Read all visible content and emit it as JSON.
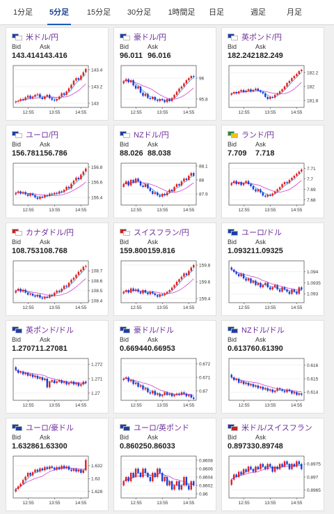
{
  "tabs": [
    {
      "label": "1分足",
      "active": false
    },
    {
      "label": "5分足",
      "active": true
    },
    {
      "label": "15分足",
      "active": false
    },
    {
      "label": "30分足",
      "active": false
    },
    {
      "label": "1時間足",
      "active": false
    },
    {
      "label": "日足",
      "active": false
    },
    {
      "label": "週足",
      "active": false
    },
    {
      "label": "月足",
      "active": false
    }
  ],
  "labels": {
    "bid": "Bid",
    "ask": "Ask"
  },
  "colors": {
    "up": "#e02020",
    "down": "#1c3fd6",
    "ma_fast": "#3aa0e0",
    "ma_slow": "#d040d0",
    "pair_text": "#6c2d9a",
    "tab_active": "#1a5bb8"
  },
  "cards": [
    {
      "pair": "米ドル/円",
      "bid": "143.414",
      "ask": "143.416",
      "flags": [
        "#1c3fa8",
        "#ffffff"
      ],
      "chart": {
        "xticks": [
          "12:55",
          "13:55",
          "14:55"
        ],
        "yticks": [
          "143.4",
          "143.2",
          "143"
        ],
        "ylim": [
          142.95,
          143.45
        ],
        "closes": [
          143.02,
          143.03,
          143.05,
          143.04,
          143.07,
          143.09,
          143.06,
          143.08,
          143.1,
          143.11,
          143.07,
          143.05,
          143.08,
          143.1,
          143.06,
          143.04,
          143.03,
          143.05,
          143.08,
          143.12,
          143.1,
          143.14,
          143.18,
          143.22,
          143.27,
          143.3,
          143.28,
          143.33,
          143.37,
          143.41
        ]
      }
    },
    {
      "pair": "豪ドル/円",
      "bid": "96.011",
      "ask": "96.016",
      "flags": [
        "#1c3fa8",
        "#ffffff"
      ],
      "chart": {
        "xticks": [
          "12:55",
          "13:55",
          "14:55"
        ],
        "yticks": [
          "96",
          "95.8"
        ],
        "ylim": [
          95.72,
          96.12
        ],
        "closes": [
          95.97,
          95.99,
          95.96,
          95.98,
          95.93,
          95.9,
          95.92,
          95.86,
          95.83,
          95.85,
          95.81,
          95.8,
          95.82,
          95.79,
          95.78,
          95.8,
          95.79,
          95.77,
          95.8,
          95.78,
          95.81,
          95.84,
          95.87,
          95.9,
          95.92,
          95.95,
          95.98,
          96.0,
          96.02,
          96.01
        ]
      }
    },
    {
      "pair": "英ポンド/円",
      "bid": "182.242",
      "ask": "182.249",
      "flags": [
        "#1c3fa8",
        "#ffffff"
      ],
      "chart": {
        "xticks": [
          "12:55",
          "13:55",
          "14:55"
        ],
        "yticks": [
          "182.2",
          "182",
          "181.8"
        ],
        "ylim": [
          181.7,
          182.3
        ],
        "closes": [
          181.9,
          181.92,
          181.9,
          181.93,
          181.95,
          181.92,
          181.94,
          181.96,
          181.93,
          181.95,
          181.97,
          181.94,
          181.92,
          181.9,
          181.85,
          181.82,
          181.85,
          181.84,
          181.88,
          181.9,
          181.93,
          181.96,
          182.0,
          182.05,
          182.08,
          182.12,
          182.15,
          182.18,
          182.22,
          182.24
        ]
      }
    },
    {
      "pair": "ユーロ/円",
      "bid": "156.781",
      "ask": "156.786",
      "flags": [
        "#1c3fa8",
        "#ffffff"
      ],
      "chart": {
        "xticks": [
          "12:55",
          "13:55",
          "14:55"
        ],
        "yticks": [
          "156.8",
          "156.6",
          "156.4"
        ],
        "ylim": [
          156.3,
          156.85
        ],
        "closes": [
          156.46,
          156.48,
          156.45,
          156.47,
          156.44,
          156.42,
          156.45,
          156.43,
          156.4,
          156.38,
          156.41,
          156.4,
          156.43,
          156.42,
          156.45,
          156.44,
          156.46,
          156.45,
          156.48,
          156.47,
          156.5,
          156.54,
          156.52,
          156.58,
          156.62,
          156.66,
          156.64,
          156.7,
          156.74,
          156.78
        ]
      }
    },
    {
      "pair": "NZドル/円",
      "bid": "88.026",
      "ask": "88.038",
      "flags": [
        "#1c3fa8",
        "#ffffff"
      ],
      "chart": {
        "xticks": [
          "12:55",
          "13:55",
          "14:55"
        ],
        "yticks": [
          "88.1",
          "88",
          "87.9"
        ],
        "ylim": [
          87.82,
          88.12
        ],
        "closes": [
          87.97,
          87.99,
          87.96,
          88.0,
          87.98,
          88.01,
          87.99,
          87.96,
          87.95,
          87.97,
          87.94,
          87.92,
          87.9,
          87.91,
          87.89,
          87.88,
          87.9,
          87.89,
          87.91,
          87.93,
          87.92,
          87.95,
          87.97,
          87.96,
          87.99,
          88.01,
          88.0,
          88.03,
          88.05,
          88.03
        ]
      }
    },
    {
      "pair": "ランド/円",
      "bid": "7.709",
      "ask": "7.718",
      "flags": [
        "#2a8a3a",
        "#f0c020"
      ],
      "chart": {
        "xticks": [
          "12:55",
          "13:55",
          "14:55"
        ],
        "yticks": [
          "7.71",
          "7.7",
          "7.69",
          "7.68"
        ],
        "ylim": [
          7.675,
          7.715
        ],
        "closes": [
          7.696,
          7.698,
          7.695,
          7.697,
          7.694,
          7.696,
          7.698,
          7.695,
          7.693,
          7.69,
          7.688,
          7.69,
          7.687,
          7.684,
          7.683,
          7.685,
          7.684,
          7.686,
          7.688,
          7.69,
          7.692,
          7.695,
          7.697,
          7.696,
          7.699,
          7.701,
          7.703,
          7.705,
          7.707,
          7.709
        ]
      }
    },
    {
      "pair": "カナダドル/円",
      "bid": "108.753",
      "ask": "108.768",
      "flags": [
        "#d02020",
        "#ffffff"
      ],
      "chart": {
        "xticks": [
          "12:55",
          "13:55",
          "14:55"
        ],
        "yticks": [
          "108.7",
          "108.6",
          "108.5",
          "108.4"
        ],
        "ylim": [
          108.38,
          108.8
        ],
        "closes": [
          108.5,
          108.52,
          108.49,
          108.51,
          108.48,
          108.46,
          108.47,
          108.45,
          108.44,
          108.46,
          108.43,
          108.42,
          108.44,
          108.43,
          108.46,
          108.45,
          108.48,
          108.5,
          108.49,
          108.52,
          108.55,
          108.54,
          108.58,
          108.61,
          108.63,
          108.66,
          108.69,
          108.71,
          108.74,
          108.75
        ]
      }
    },
    {
      "pair": "スイスフラン/円",
      "bid": "159.800",
      "ask": "159.816",
      "flags": [
        "#d02020",
        "#ffffff"
      ],
      "chart": {
        "xticks": [
          "12:55",
          "13:55",
          "14:55"
        ],
        "yticks": [
          "159.8",
          "159.6",
          "159.4"
        ],
        "ylim": [
          159.35,
          159.85
        ],
        "closes": [
          159.48,
          159.5,
          159.47,
          159.52,
          159.49,
          159.51,
          159.48,
          159.46,
          159.5,
          159.47,
          159.45,
          159.48,
          159.46,
          159.44,
          159.42,
          159.45,
          159.44,
          159.46,
          159.48,
          159.5,
          159.53,
          159.56,
          159.6,
          159.63,
          159.66,
          159.7,
          159.68,
          159.73,
          159.77,
          159.8
        ]
      }
    },
    {
      "pair": "ユーロ/ドル",
      "bid": "1.09321",
      "ask": "1.09325",
      "flags": [
        "#1c3fa8",
        "#1c3fa8"
      ],
      "chart": {
        "xticks": [
          "12:55",
          "13:55",
          "14:55"
        ],
        "yticks": [
          "1.094",
          "1.0935",
          "1.093"
        ],
        "ylim": [
          1.0926,
          1.0945
        ],
        "closes": [
          1.0941,
          1.094,
          1.0939,
          1.0938,
          1.0939,
          1.0937,
          1.0936,
          1.0937,
          1.0935,
          1.0936,
          1.0934,
          1.0935,
          1.0933,
          1.0934,
          1.0935,
          1.0933,
          1.0932,
          1.0933,
          1.0934,
          1.0932,
          1.0931,
          1.0933,
          1.0932,
          1.0931,
          1.093,
          1.0932,
          1.0931,
          1.093,
          1.0933,
          1.0932
        ]
      }
    },
    {
      "pair": "英ポンド/ドル",
      "bid": "1.27071",
      "ask": "1.27081",
      "flags": [
        "#1c3fa8",
        "#1c3fa8"
      ],
      "chart": {
        "xticks": [
          "12:55",
          "13:55",
          "14:55"
        ],
        "yticks": [
          "1.272",
          "1.271",
          "1.27"
        ],
        "ylim": [
          1.2695,
          1.2724
        ],
        "closes": [
          1.2716,
          1.2714,
          1.2715,
          1.2713,
          1.2714,
          1.2712,
          1.2713,
          1.2711,
          1.2712,
          1.271,
          1.2711,
          1.2709,
          1.271,
          1.2704,
          1.2708,
          1.2709,
          1.2707,
          1.2708,
          1.2709,
          1.2707,
          1.2708,
          1.2706,
          1.2707,
          1.2708,
          1.2706,
          1.2707,
          1.2705,
          1.2706,
          1.2708,
          1.2707
        ]
      }
    },
    {
      "pair": "豪ドル/ドル",
      "bid": "0.66944",
      "ask": "0.66953",
      "flags": [
        "#1c3fa8",
        "#1c3fa8"
      ],
      "chart": {
        "xticks": [
          "12:55",
          "13:55",
          "14:55"
        ],
        "yticks": [
          "0.672",
          "0.671",
          "0.67"
        ],
        "ylim": [
          0.6693,
          0.6724
        ],
        "closes": [
          0.6709,
          0.671,
          0.6707,
          0.6708,
          0.6705,
          0.6706,
          0.6703,
          0.6704,
          0.6701,
          0.6702,
          0.6699,
          0.6698,
          0.67,
          0.6697,
          0.6698,
          0.6696,
          0.6697,
          0.6699,
          0.6697,
          0.6698,
          0.6696,
          0.6697,
          0.6698,
          0.6697,
          0.6699,
          0.6698,
          0.6696,
          0.6697,
          0.6695,
          0.6694
        ]
      }
    },
    {
      "pair": "NZドル/ドル",
      "bid": "0.61376",
      "ask": "0.61390",
      "flags": [
        "#1c3fa8",
        "#1c3fa8"
      ],
      "chart": {
        "xticks": [
          "12:55",
          "13:55",
          "14:55"
        ],
        "yticks": [
          "0.616",
          "0.615",
          "0.614"
        ],
        "ylim": [
          0.6134,
          0.6165
        ],
        "closes": [
          0.6151,
          0.6149,
          0.615,
          0.6147,
          0.6148,
          0.6146,
          0.6147,
          0.6145,
          0.6146,
          0.6144,
          0.6145,
          0.6143,
          0.6144,
          0.6142,
          0.6143,
          0.6141,
          0.6142,
          0.614,
          0.6141,
          0.6143,
          0.6142,
          0.6141,
          0.614,
          0.6142,
          0.6141,
          0.6139,
          0.614,
          0.6138,
          0.6139,
          0.6138
        ]
      }
    },
    {
      "pair": "ユーロ/豪ドル",
      "bid": "1.63286",
      "ask": "1.63300",
      "flags": [
        "#1c3fa8",
        "#1c3fa8"
      ],
      "chart": {
        "xticks": [
          "12:55",
          "13:55",
          "14:55"
        ],
        "yticks": [
          "1.632",
          "1.63",
          "1.628"
        ],
        "ylim": [
          1.627,
          1.6335
        ],
        "closes": [
          1.6284,
          1.6288,
          1.6292,
          1.6298,
          1.6303,
          1.6309,
          1.6305,
          1.631,
          1.6314,
          1.6311,
          1.6316,
          1.6313,
          1.6318,
          1.6315,
          1.6319,
          1.6317,
          1.6314,
          1.6318,
          1.6315,
          1.632,
          1.6316,
          1.6319,
          1.6314,
          1.6312,
          1.6315,
          1.6311,
          1.6314,
          1.6309,
          1.6313,
          1.6329
        ]
      }
    },
    {
      "pair": "ユーロ/英ポンド",
      "bid": "0.86025",
      "ask": "0.86033",
      "flags": [
        "#1c3fa8",
        "#1c3fa8"
      ],
      "chart": {
        "xticks": [
          "12:55",
          "13:55",
          "14:55"
        ],
        "yticks": [
          "0.8608",
          "0.8606",
          "0.8604",
          "0.8602",
          "0.86"
        ],
        "ylim": [
          0.8599,
          0.8609
        ],
        "closes": [
          0.8603,
          0.8604,
          0.8603,
          0.8605,
          0.8604,
          0.8606,
          0.8605,
          0.8604,
          0.8606,
          0.8605,
          0.8604,
          0.8603,
          0.8605,
          0.8604,
          0.8606,
          0.8605,
          0.8603,
          0.8604,
          0.8602,
          0.8603,
          0.8601,
          0.8602,
          0.8603,
          0.8601,
          0.8602,
          0.8604,
          0.8602,
          0.8601,
          0.8603,
          0.8602
        ]
      }
    },
    {
      "pair": "米ドル/スイスフラン",
      "bid": "0.89733",
      "ask": "0.89748",
      "flags": [
        "#1c3fa8",
        "#d02020"
      ],
      "chart": {
        "xticks": [
          "12:55",
          "13:55",
          "14:55"
        ],
        "yticks": [
          "0.8975",
          "0.897",
          "0.8965"
        ],
        "ylim": [
          0.8962,
          0.8978
        ],
        "closes": [
          0.8969,
          0.8971,
          0.897,
          0.8972,
          0.8971,
          0.8973,
          0.8972,
          0.8974,
          0.8973,
          0.8972,
          0.8974,
          0.8973,
          0.8975,
          0.8974,
          0.8973,
          0.8975,
          0.8974,
          0.8972,
          0.8974,
          0.8973,
          0.8975,
          0.8974,
          0.8976,
          0.8975,
          0.8973,
          0.8975,
          0.8974,
          0.8976,
          0.8975,
          0.8973
        ]
      }
    }
  ]
}
